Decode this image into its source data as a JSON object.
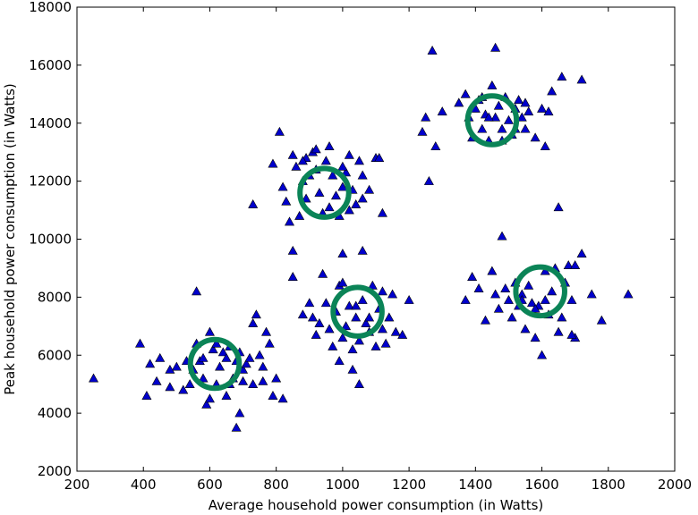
{
  "chart_data": {
    "type": "scatter",
    "xlabel": "Average household power consumption (in Watts)",
    "ylabel": "Peak household power consumption (in Watts)",
    "xlim": [
      200,
      2000
    ],
    "ylim": [
      2000,
      18000
    ],
    "xticks": [
      200,
      400,
      600,
      800,
      1000,
      1200,
      1400,
      1600,
      1800,
      2000
    ],
    "yticks": [
      2000,
      4000,
      6000,
      8000,
      10000,
      12000,
      14000,
      16000,
      18000
    ],
    "grid": false,
    "marker_color": "#0000cc",
    "circle_color": "#0b8457",
    "points": [
      [
        250,
        5200
      ],
      [
        390,
        6400
      ],
      [
        410,
        4600
      ],
      [
        420,
        5700
      ],
      [
        440,
        5100
      ],
      [
        450,
        5900
      ],
      [
        480,
        4900
      ],
      [
        500,
        5600
      ],
      [
        520,
        4800
      ],
      [
        530,
        5800
      ],
      [
        540,
        5000
      ],
      [
        560,
        6400
      ],
      [
        560,
        8200
      ],
      [
        570,
        5800
      ],
      [
        580,
        5900
      ],
      [
        590,
        4300
      ],
      [
        600,
        4500
      ],
      [
        610,
        6200
      ],
      [
        620,
        6400
      ],
      [
        630,
        5600
      ],
      [
        640,
        6100
      ],
      [
        650,
        5900
      ],
      [
        660,
        6300
      ],
      [
        670,
        5200
      ],
      [
        680,
        5800
      ],
      [
        690,
        6100
      ],
      [
        700,
        5500
      ],
      [
        710,
        5700
      ],
      [
        720,
        5900
      ],
      [
        730,
        5000
      ],
      [
        740,
        7400
      ],
      [
        750,
        6000
      ],
      [
        760,
        5100
      ],
      [
        770,
        6800
      ],
      [
        780,
        6400
      ],
      [
        790,
        4600
      ],
      [
        800,
        5200
      ],
      [
        820,
        4500
      ],
      [
        680,
        3500
      ],
      [
        690,
        4000
      ],
      [
        580,
        5200
      ],
      [
        620,
        5000
      ],
      [
        550,
        5500
      ],
      [
        600,
        6800
      ],
      [
        660,
        5000
      ],
      [
        700,
        5100
      ],
      [
        730,
        7100
      ],
      [
        650,
        4600
      ],
      [
        480,
        5500
      ],
      [
        760,
        5600
      ],
      [
        730,
        11200
      ],
      [
        790,
        12600
      ],
      [
        810,
        13700
      ],
      [
        820,
        11800
      ],
      [
        830,
        11300
      ],
      [
        840,
        10600
      ],
      [
        850,
        12900
      ],
      [
        860,
        12500
      ],
      [
        870,
        10800
      ],
      [
        880,
        12000
      ],
      [
        890,
        11400
      ],
      [
        900,
        12200
      ],
      [
        910,
        13000
      ],
      [
        920,
        12400
      ],
      [
        930,
        11600
      ],
      [
        940,
        10900
      ],
      [
        950,
        12700
      ],
      [
        960,
        11100
      ],
      [
        970,
        12200
      ],
      [
        980,
        11500
      ],
      [
        990,
        10800
      ],
      [
        1000,
        11800
      ],
      [
        1010,
        12300
      ],
      [
        1020,
        12900
      ],
      [
        1030,
        11700
      ],
      [
        1040,
        11200
      ],
      [
        1050,
        12700
      ],
      [
        1060,
        11400
      ],
      [
        1080,
        11700
      ],
      [
        1100,
        12800
      ],
      [
        1110,
        12800
      ],
      [
        1120,
        10900
      ],
      [
        1020,
        11000
      ],
      [
        890,
        12800
      ],
      [
        960,
        13200
      ],
      [
        850,
        9600
      ],
      [
        880,
        12700
      ],
      [
        920,
        13100
      ],
      [
        1000,
        12500
      ],
      [
        1060,
        12200
      ],
      [
        850,
        8700
      ],
      [
        880,
        7400
      ],
      [
        900,
        7800
      ],
      [
        910,
        7300
      ],
      [
        920,
        6700
      ],
      [
        930,
        7100
      ],
      [
        940,
        8800
      ],
      [
        950,
        7800
      ],
      [
        960,
        6900
      ],
      [
        970,
        6300
      ],
      [
        980,
        7500
      ],
      [
        990,
        8400
      ],
      [
        1000,
        6600
      ],
      [
        1010,
        7000
      ],
      [
        1020,
        7700
      ],
      [
        1030,
        6200
      ],
      [
        1040,
        7300
      ],
      [
        1050,
        6500
      ],
      [
        1060,
        7900
      ],
      [
        1070,
        7100
      ],
      [
        1080,
        6800
      ],
      [
        1090,
        8400
      ],
      [
        1100,
        6300
      ],
      [
        1110,
        7600
      ],
      [
        1120,
        6900
      ],
      [
        1130,
        6400
      ],
      [
        1140,
        7300
      ],
      [
        1150,
        8100
      ],
      [
        1160,
        6800
      ],
      [
        1180,
        6700
      ],
      [
        1200,
        7900
      ],
      [
        1050,
        5000
      ],
      [
        1000,
        9500
      ],
      [
        1060,
        9600
      ],
      [
        990,
        5800
      ],
      [
        1030,
        5500
      ],
      [
        1120,
        8200
      ],
      [
        1000,
        8500
      ],
      [
        1040,
        7700
      ],
      [
        1080,
        7300
      ],
      [
        1240,
        13700
      ],
      [
        1250,
        14200
      ],
      [
        1260,
        12000
      ],
      [
        1280,
        13200
      ],
      [
        1300,
        14400
      ],
      [
        1270,
        16500
      ],
      [
        1350,
        14700
      ],
      [
        1370,
        15000
      ],
      [
        1380,
        14200
      ],
      [
        1390,
        13500
      ],
      [
        1400,
        14500
      ],
      [
        1410,
        14800
      ],
      [
        1420,
        13800
      ],
      [
        1430,
        14300
      ],
      [
        1440,
        13400
      ],
      [
        1450,
        15300
      ],
      [
        1460,
        14200
      ],
      [
        1470,
        14600
      ],
      [
        1480,
        13800
      ],
      [
        1490,
        14900
      ],
      [
        1500,
        14100
      ],
      [
        1510,
        13600
      ],
      [
        1520,
        14500
      ],
      [
        1530,
        14800
      ],
      [
        1540,
        14200
      ],
      [
        1550,
        13800
      ],
      [
        1560,
        14400
      ],
      [
        1580,
        13500
      ],
      [
        1600,
        14500
      ],
      [
        1610,
        13200
      ],
      [
        1620,
        14400
      ],
      [
        1630,
        15100
      ],
      [
        1660,
        15600
      ],
      [
        1720,
        15500
      ],
      [
        1460,
        16600
      ],
      [
        1420,
        14900
      ],
      [
        1480,
        13400
      ],
      [
        1520,
        13800
      ],
      [
        1550,
        14700
      ],
      [
        1440,
        14200
      ],
      [
        1370,
        7900
      ],
      [
        1390,
        8700
      ],
      [
        1410,
        8300
      ],
      [
        1430,
        7200
      ],
      [
        1450,
        8900
      ],
      [
        1460,
        8100
      ],
      [
        1470,
        7600
      ],
      [
        1480,
        10100
      ],
      [
        1490,
        8300
      ],
      [
        1500,
        7900
      ],
      [
        1510,
        7300
      ],
      [
        1520,
        8500
      ],
      [
        1530,
        7700
      ],
      [
        1540,
        8100
      ],
      [
        1550,
        6900
      ],
      [
        1560,
        8400
      ],
      [
        1570,
        7800
      ],
      [
        1580,
        6600
      ],
      [
        1590,
        7700
      ],
      [
        1600,
        6000
      ],
      [
        1610,
        8900
      ],
      [
        1620,
        7400
      ],
      [
        1630,
        8200
      ],
      [
        1640,
        9000
      ],
      [
        1650,
        11100
      ],
      [
        1660,
        7300
      ],
      [
        1670,
        8500
      ],
      [
        1680,
        9100
      ],
      [
        1690,
        7900
      ],
      [
        1700,
        6600
      ],
      [
        1720,
        9500
      ],
      [
        1750,
        8100
      ],
      [
        1780,
        7200
      ],
      [
        1860,
        8100
      ],
      [
        1610,
        7900
      ],
      [
        1650,
        6800
      ],
      [
        1700,
        9100
      ],
      [
        1540,
        7900
      ],
      [
        1580,
        7600
      ],
      [
        1690,
        6700
      ]
    ],
    "circles": [
      {
        "cx": 615,
        "cy": 5700,
        "r": 150
      },
      {
        "cx": 945,
        "cy": 11600,
        "r": 150
      },
      {
        "cx": 1045,
        "cy": 7500,
        "r": 150
      },
      {
        "cx": 1450,
        "cy": 14100,
        "r": 150
      },
      {
        "cx": 1595,
        "cy": 8200,
        "r": 150
      }
    ]
  }
}
